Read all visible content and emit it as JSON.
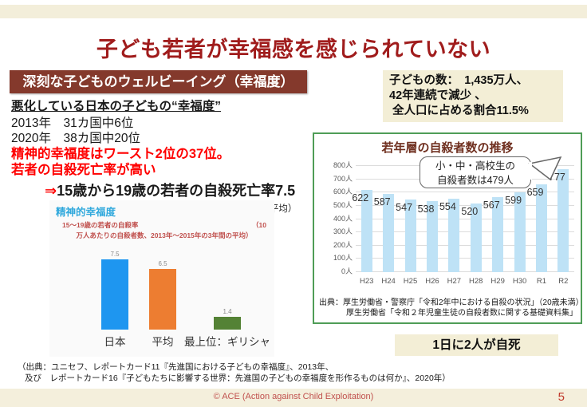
{
  "slide": {
    "title": "子ども若者が幸福感を感じられていない",
    "footer_credit": "© ACE (Action against Child Exploitation)",
    "page_number": "5"
  },
  "left_panel": {
    "header": "深刻な子どものウェルビーイング（幸福度）",
    "subheading": "悪化している日本の子どもの“幸福度”",
    "rank_2013": "2013年　31カ国中6位",
    "rank_2020": "2020年　38カ国中20位",
    "warning_line1": "精神的幸福度はワースト2位の37位。",
    "warning_line2": "若者の自殺死亡率が高い",
    "arrow": "⇒",
    "conclusion": "15歳から19歳の若者の自殺死亡率7.5",
    "conclusion_note": "（10万人あたりの自殺者数、2013年～2015年3年間平均）"
  },
  "right_panel": {
    "line1": "子どもの数：　1,435万人、",
    "line2": "42年連続で減少 、",
    "line3": " 全人口に占める割合11.5%"
  },
  "highlight": {
    "text": "1日に2人が自死"
  },
  "bottom_source": {
    "line1": "（出典：ユニセフ、レポートカード11『先進国における子どもの幸福度』、2013年、",
    "line2": "及び　レポートカード16『子どもたちに影響する世界：先進国の子どもの幸福度を形作るものは何か』、2020年）"
  },
  "chart_data": [
    {
      "type": "bar",
      "title": "若年層の自殺者数の推移",
      "categories": [
        "H23",
        "H24",
        "H25",
        "H26",
        "H27",
        "H28",
        "H29",
        "H30",
        "R1",
        "R2"
      ],
      "values": [
        622,
        587,
        547,
        538,
        554,
        520,
        567,
        599,
        659,
        777
      ],
      "ylim": [
        0,
        800
      ],
      "ytick_step": 100,
      "y_unit": "人",
      "grid": "horizontal",
      "bar_color": "#BEE2F6",
      "callout": {
        "line1": "小・中・高校生の",
        "line2": "自殺者数は479人"
      },
      "source_line1": "出典：厚生労働省・警察庁「令和2年中における自殺の状況」（20歳未満）",
      "source_line2": "厚生労働省「令和２年児童生徒の自殺者数に関する基礎資料集」"
    },
    {
      "type": "bar",
      "title": "精神的幸福度",
      "subtitle_left": "15～19歳の若者の自殺率",
      "subtitle_right": "（10",
      "subtitle_line2": "万人あたりの自殺者数、2013年～2015年の3年間の平均）",
      "categories": [
        "日本",
        "平均",
        "最上位：ギリシャ"
      ],
      "values": [
        7.5,
        6.5,
        1.4
      ],
      "bar_colors": [
        "#1E96F0",
        "#ED7D31",
        "#548235"
      ],
      "ylim": [
        0,
        7.5
      ],
      "grid": "off"
    }
  ],
  "colors": {
    "title_red": "#A01C1C",
    "header_maroon": "#84392C",
    "warning_red": "#FF0000",
    "beige_box": "#F3EED6",
    "green_border": "#4F9D57",
    "main_bar_blue": "#BEE2F6",
    "mini_title_cyan": "#2FA8DC",
    "mini_subtitle_red": "#C0504D"
  }
}
